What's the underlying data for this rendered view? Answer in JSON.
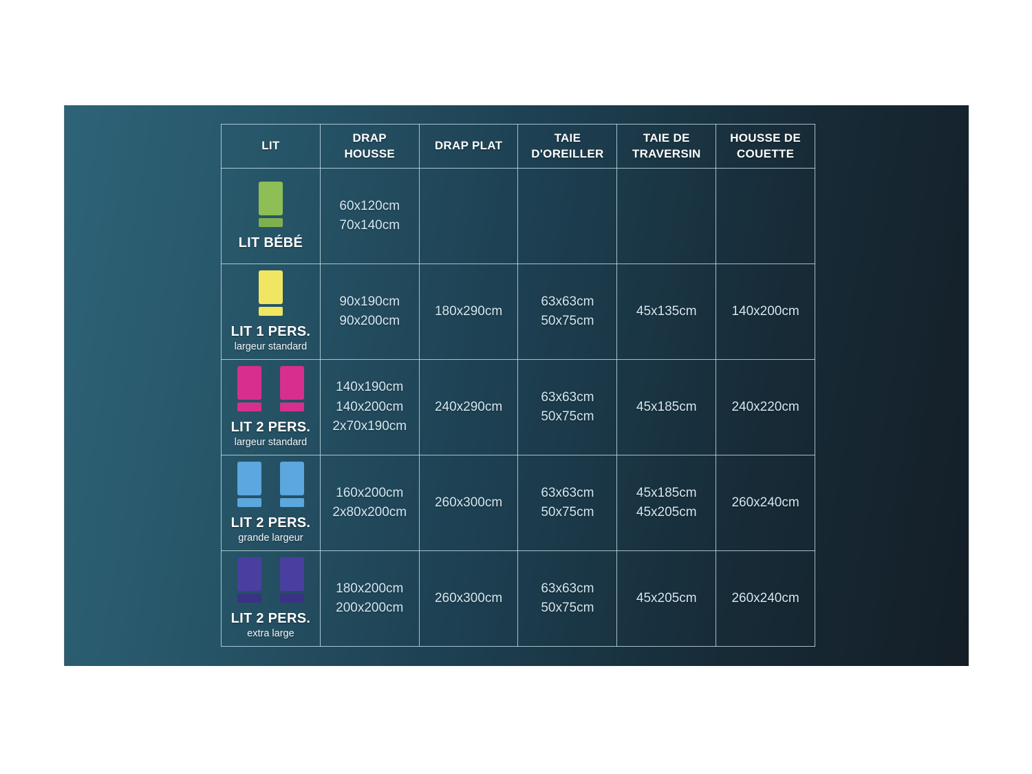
{
  "panel": {
    "gradient_left": "#2e6377",
    "gradient_right": "#141e27",
    "grid_line_color": "#cde8f2"
  },
  "table": {
    "headers": [
      "LIT",
      "DRAP HOUSSE",
      "DRAP PLAT",
      "TAIE D'OREILLER",
      "TAIE DE TRAVERSIN",
      "HOUSSE DE COUETTE"
    ],
    "rows": [
      {
        "name": "LIT BÉBÉ",
        "subtitle": "",
        "bed_color": "#8dbf56",
        "pillow_color": "#7fb04e",
        "drap_housse": [
          "60x120cm",
          "70x140cm"
        ],
        "drap_plat": [],
        "taie_oreiller": [],
        "taie_traversin": [],
        "housse_couette": []
      },
      {
        "name": "LIT 1 PERS.",
        "subtitle": "largeur standard",
        "bed_color": "#f1e662",
        "pillow_color": "#f1e662",
        "drap_housse": [
          "90x190cm",
          "90x200cm"
        ],
        "drap_plat": [
          "180x290cm"
        ],
        "taie_oreiller": [
          "63x63cm",
          "50x75cm"
        ],
        "taie_traversin": [
          "45x135cm"
        ],
        "housse_couette": [
          "140x200cm"
        ]
      },
      {
        "name": "LIT 2 PERS.",
        "subtitle": "largeur standard",
        "bed_color": "#d62f8e",
        "pillow_color": "#d62f8e",
        "drap_housse": [
          "140x190cm",
          "140x200cm",
          "2x70x190cm"
        ],
        "drap_plat": [
          "240x290cm"
        ],
        "taie_oreiller": [
          "63x63cm",
          "50x75cm"
        ],
        "taie_traversin": [
          "45x185cm"
        ],
        "housse_couette": [
          "240x220cm"
        ]
      },
      {
        "name": "LIT 2 PERS.",
        "subtitle": "grande largeur",
        "bed_color": "#5ba7de",
        "pillow_color": "#5ba7de",
        "drap_housse": [
          "160x200cm",
          "2x80x200cm"
        ],
        "drap_plat": [
          "260x300cm"
        ],
        "taie_oreiller": [
          "63x63cm",
          "50x75cm"
        ],
        "taie_traversin": [
          "45x185cm",
          "45x205cm"
        ],
        "housse_couette": [
          "260x240cm"
        ]
      },
      {
        "name": "LIT 2 PERS.",
        "subtitle": "extra large",
        "bed_color": "#4a3fa0",
        "pillow_color": "#3a3286",
        "drap_housse": [
          "180x200cm",
          "200x200cm"
        ],
        "drap_plat": [
          "260x300cm"
        ],
        "taie_oreiller": [
          "63x63cm",
          "50x75cm"
        ],
        "taie_traversin": [
          "45x205cm"
        ],
        "housse_couette": [
          "260x240cm"
        ]
      }
    ]
  },
  "chart_data": {
    "type": "table",
    "title": "",
    "columns": [
      "LIT",
      "DRAP HOUSSE",
      "DRAP PLAT",
      "TAIE D'OREILLER",
      "TAIE DE TRAVERSIN",
      "HOUSSE DE COUETTE"
    ],
    "rows": [
      [
        "LIT BÉBÉ",
        "60x120cm / 70x140cm",
        "",
        "",
        "",
        ""
      ],
      [
        "LIT 1 PERS. (largeur standard)",
        "90x190cm / 90x200cm",
        "180x290cm",
        "63x63cm / 50x75cm",
        "45x135cm",
        "140x200cm"
      ],
      [
        "LIT 2 PERS. (largeur standard)",
        "140x190cm / 140x200cm / 2x70x190cm",
        "240x290cm",
        "63x63cm / 50x75cm",
        "45x185cm",
        "240x220cm"
      ],
      [
        "LIT 2 PERS. (grande largeur)",
        "160x200cm / 2x80x200cm",
        "260x300cm",
        "63x63cm / 50x75cm",
        "45x185cm / 45x205cm",
        "260x240cm"
      ],
      [
        "LIT 2 PERS. (extra large)",
        "180x200cm / 200x200cm",
        "260x300cm",
        "63x63cm / 50x75cm",
        "45x205cm",
        "260x240cm"
      ]
    ]
  }
}
